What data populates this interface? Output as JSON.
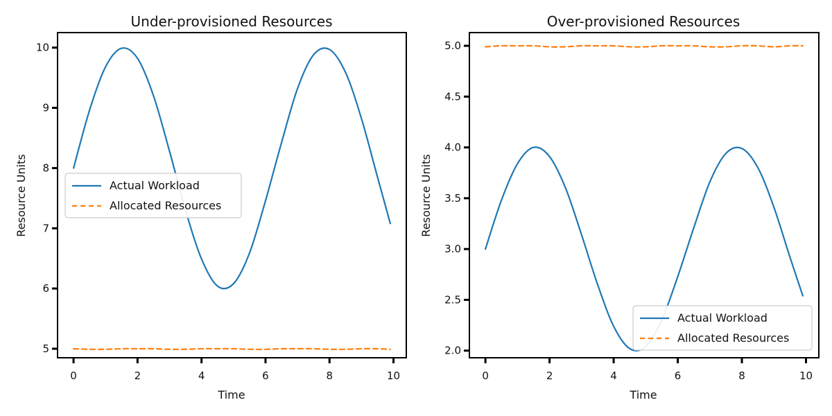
{
  "chart_data": [
    {
      "type": "line",
      "title": "Under-provisioned Resources",
      "xlabel": "Time",
      "ylabel": "Resource Units",
      "xlim": [
        -0.5,
        10.4
      ],
      "ylim": [
        4.85,
        10.25
      ],
      "xticks": [
        0,
        2,
        4,
        6,
        8,
        10
      ],
      "xtick_labels": [
        "0",
        "2",
        "4",
        "6",
        "8",
        "10"
      ],
      "yticks": [
        5,
        6,
        7,
        8,
        9,
        10
      ],
      "ytick_labels": [
        "5",
        "6",
        "7",
        "8",
        "9",
        "10"
      ],
      "grid": false,
      "legend_position": "center-left",
      "x": [
        0,
        0.5,
        1,
        1.5,
        2,
        2.5,
        3,
        3.5,
        4,
        4.5,
        5,
        5.5,
        6,
        6.5,
        7,
        7.5,
        8,
        8.5,
        9,
        9.5,
        9.9
      ],
      "series": [
        {
          "name": "Actual Workload",
          "color": "#1f77b4",
          "style": "solid",
          "values": [
            8.0,
            8.96,
            9.68,
            9.99,
            9.82,
            9.2,
            8.28,
            7.3,
            6.49,
            6.04,
            6.08,
            6.59,
            7.46,
            8.42,
            9.32,
            9.88,
            9.97,
            9.59,
            8.82,
            7.85,
            7.08
          ]
        },
        {
          "name": "Allocated Resources",
          "color": "#ff7f0e",
          "style": "dashed",
          "values": [
            5.0,
            4.99,
            4.99,
            5.0,
            5.0,
            5.0,
            4.99,
            4.99,
            5.0,
            5.0,
            5.0,
            4.99,
            4.99,
            5.0,
            5.0,
            5.0,
            4.99,
            4.99,
            5.0,
            5.0,
            4.99
          ]
        }
      ]
    },
    {
      "type": "line",
      "title": "Over-provisioned Resources",
      "xlabel": "Time",
      "ylabel": "Resource Units",
      "xlim": [
        -0.5,
        10.4
      ],
      "ylim": [
        1.93,
        5.13
      ],
      "xticks": [
        0,
        2,
        4,
        6,
        8,
        10
      ],
      "xtick_labels": [
        "0",
        "2",
        "4",
        "6",
        "8",
        "10"
      ],
      "yticks": [
        2.0,
        2.5,
        3.0,
        3.5,
        4.0,
        4.5,
        5.0
      ],
      "ytick_labels": [
        "2.0",
        "2.5",
        "3.0",
        "3.5",
        "4.0",
        "4.5",
        "5.0"
      ],
      "grid": false,
      "legend_position": "lower-right",
      "x": [
        0,
        0.5,
        1,
        1.5,
        2,
        2.5,
        3,
        3.5,
        4,
        4.5,
        5,
        5.5,
        6,
        6.5,
        7,
        7.5,
        8,
        8.5,
        9,
        9.5,
        9.9
      ],
      "series": [
        {
          "name": "Actual Workload",
          "color": "#1f77b4",
          "style": "solid",
          "values": [
            3.0,
            3.48,
            3.84,
            4.0,
            3.91,
            3.6,
            3.14,
            2.65,
            2.24,
            2.02,
            2.04,
            2.3,
            2.73,
            3.21,
            3.66,
            3.94,
            3.99,
            3.8,
            3.41,
            2.92,
            2.54
          ]
        },
        {
          "name": "Allocated Resources",
          "color": "#ff7f0e",
          "style": "dashed",
          "values": [
            4.99,
            5.0,
            5.0,
            5.0,
            4.99,
            4.99,
            5.0,
            5.0,
            5.0,
            4.99,
            4.99,
            5.0,
            5.0,
            5.0,
            4.99,
            4.99,
            5.0,
            5.0,
            4.99,
            5.0,
            5.0
          ]
        }
      ]
    }
  ]
}
